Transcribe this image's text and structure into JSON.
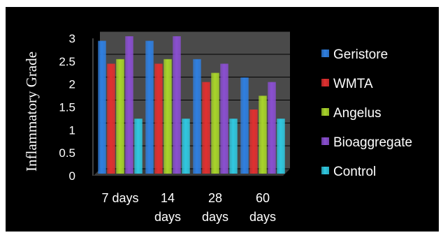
{
  "chart_data": {
    "type": "bar",
    "ylabel": "Inflammatory Grade",
    "ylim": [
      0,
      3
    ],
    "yticks": [
      "0",
      "0.5",
      "1",
      "1.5",
      "2",
      "2.5",
      "3"
    ],
    "categories": [
      [
        "7 days"
      ],
      [
        "14",
        "days"
      ],
      [
        "28",
        "days"
      ],
      [
        "60",
        "days"
      ]
    ],
    "series": [
      {
        "name": "Geristore",
        "color": "#2f7fe0",
        "values": [
          2.9,
          2.9,
          2.5,
          2.1
        ]
      },
      {
        "name": "WMTA",
        "color": "#e03030",
        "values": [
          2.4,
          2.4,
          2.0,
          1.4
        ]
      },
      {
        "name": "Angelus",
        "color": "#a8d42a",
        "values": [
          2.5,
          2.5,
          2.2,
          1.7
        ]
      },
      {
        "name": "Bioaggregate",
        "color": "#8a4fd0",
        "values": [
          3.0,
          3.0,
          2.4,
          2.0
        ]
      },
      {
        "name": "Control",
        "color": "#30c8e0",
        "values": [
          1.2,
          1.2,
          1.2,
          1.2
        ]
      }
    ],
    "legend_position": "right",
    "background": "#000000",
    "plot_background": "#4a4a4a"
  }
}
